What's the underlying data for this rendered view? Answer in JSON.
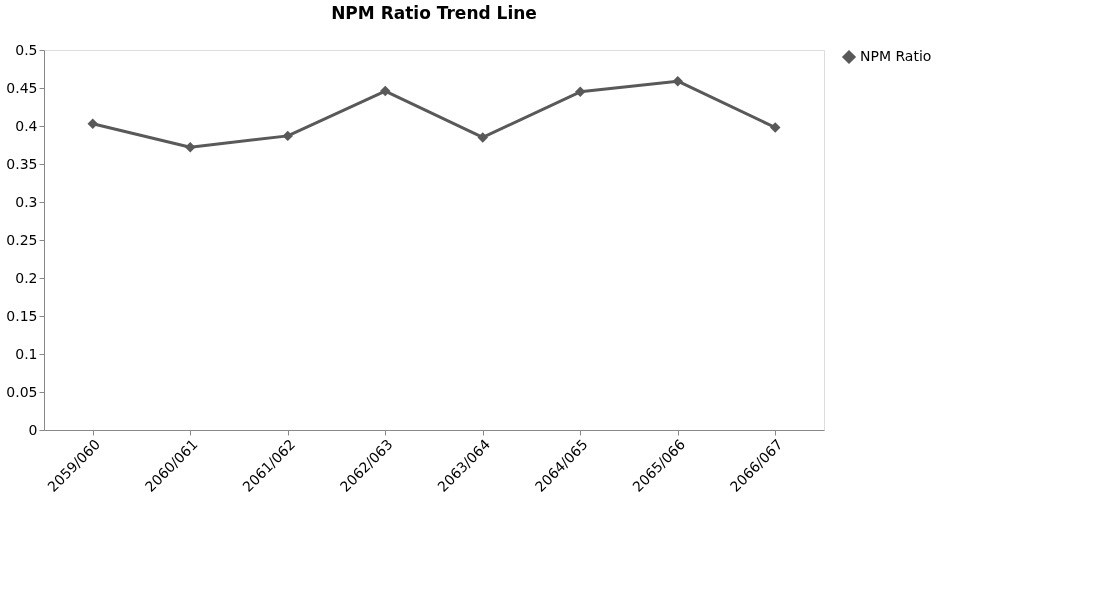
{
  "chart_data": {
    "type": "line",
    "title": "NPM Ratio Trend Line",
    "categories": [
      "2059/060",
      "2060/061",
      "2061/062",
      "2062/063",
      "2063/064",
      "2064/065",
      "2065/066",
      "2066/067"
    ],
    "series": [
      {
        "name": "NPM Ratio",
        "color": "#595959",
        "values": [
          0.403,
          0.372,
          0.387,
          0.446,
          0.385,
          0.445,
          0.459,
          0.398
        ]
      }
    ],
    "ylim": [
      0,
      0.5
    ],
    "yticks": [
      0,
      0.05,
      0.1,
      0.15,
      0.2,
      0.25,
      0.3,
      0.35,
      0.4,
      0.45,
      0.5
    ],
    "grid": false,
    "legend": "right",
    "marker": "diamond",
    "line_style": "solid"
  }
}
